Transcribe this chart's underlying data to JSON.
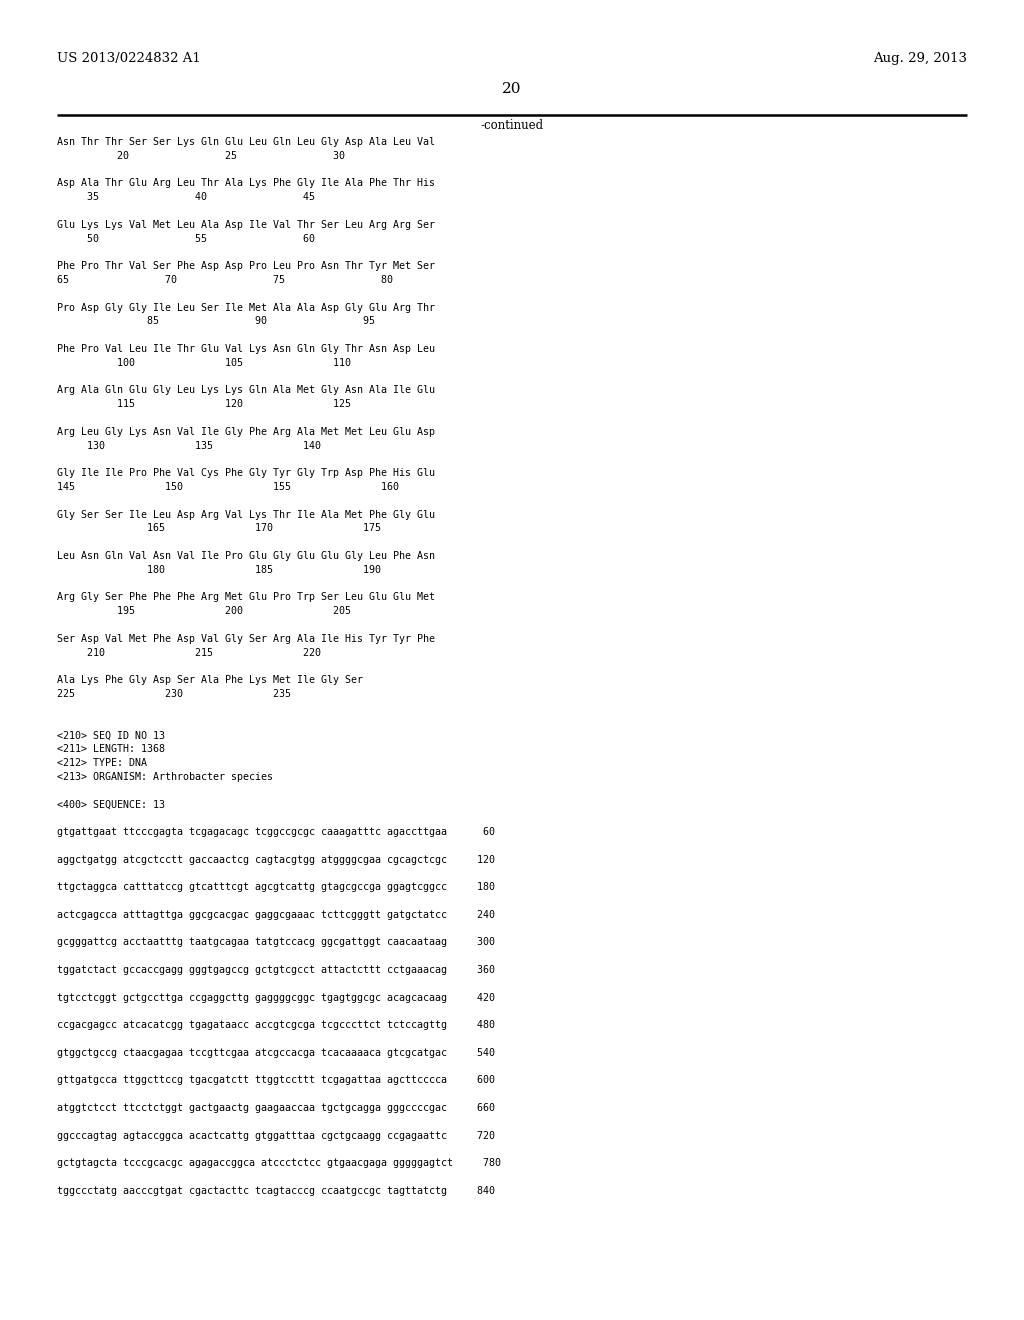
{
  "header_left": "US 2013/0224832 A1",
  "header_right": "Aug. 29, 2013",
  "page_number": "20",
  "continued_label": "-continued",
  "background_color": "#ffffff",
  "text_color": "#000000",
  "content_lines": [
    "Asn Thr Thr Ser Ser Lys Gln Glu Leu Gln Leu Gly Asp Ala Leu Val",
    "          20                25                30",
    "",
    "Asp Ala Thr Glu Arg Leu Thr Ala Lys Phe Gly Ile Ala Phe Thr His",
    "     35                40                45",
    "",
    "Glu Lys Lys Val Met Leu Ala Asp Ile Val Thr Ser Leu Arg Arg Ser",
    "     50                55                60",
    "",
    "Phe Pro Thr Val Ser Phe Asp Asp Pro Leu Pro Asn Thr Tyr Met Ser",
    "65                70                75                80",
    "",
    "Pro Asp Gly Gly Ile Leu Ser Ile Met Ala Ala Asp Gly Glu Arg Thr",
    "               85                90                95",
    "",
    "Phe Pro Val Leu Ile Thr Glu Val Lys Asn Gln Gly Thr Asn Asp Leu",
    "          100               105               110",
    "",
    "Arg Ala Gln Glu Gly Leu Lys Lys Gln Ala Met Gly Asn Ala Ile Glu",
    "          115               120               125",
    "",
    "Arg Leu Gly Lys Asn Val Ile Gly Phe Arg Ala Met Met Leu Glu Asp",
    "     130               135               140",
    "",
    "Gly Ile Ile Pro Phe Val Cys Phe Gly Tyr Gly Trp Asp Phe His Glu",
    "145               150               155               160",
    "",
    "Gly Ser Ser Ile Leu Asp Arg Val Lys Thr Ile Ala Met Phe Gly Glu",
    "               165               170               175",
    "",
    "Leu Asn Gln Val Asn Val Ile Pro Glu Gly Glu Glu Gly Leu Phe Asn",
    "               180               185               190",
    "",
    "Arg Gly Ser Phe Phe Phe Arg Met Glu Pro Trp Ser Leu Glu Glu Met",
    "          195               200               205",
    "",
    "Ser Asp Val Met Phe Asp Val Gly Ser Arg Ala Ile His Tyr Tyr Phe",
    "     210               215               220",
    "",
    "Ala Lys Phe Gly Asp Ser Ala Phe Lys Met Ile Gly Ser",
    "225               230               235",
    "",
    "",
    "<210> SEQ ID NO 13",
    "<211> LENGTH: 1368",
    "<212> TYPE: DNA",
    "<213> ORGANISM: Arthrobacter species",
    "",
    "<400> SEQUENCE: 13",
    "",
    "gtgattgaat ttcccgagta tcgagacagc tcggccgcgc caaagatttc agaccttgaa      60",
    "",
    "aggctgatgg atcgctcctt gaccaactcg cagtacgtgg atggggcgaa cgcagctcgc     120",
    "",
    "ttgctaggca catttatccg gtcatttcgt agcgtcattg gtagcgccga ggagtcggcc     180",
    "",
    "actcgagcca atttagttga ggcgcacgac gaggcgaaac tcttcgggtt gatgctatcc     240",
    "",
    "gcgggattcg acctaatttg taatgcagaa tatgtccacg ggcgattggt caacaataag     300",
    "",
    "tggatctact gccaccgagg gggtgagccg gctgtcgcct attactcttt cctgaaacag     360",
    "",
    "tgtcctcggt gctgccttga ccgaggcttg gaggggcggc tgagtggcgc acagcacaag     420",
    "",
    "ccgacgagcc atcacatcgg tgagataacc accgtcgcga tcgcccttct tctccagttg     480",
    "",
    "gtggctgccg ctaacgagaa tccgttcgaa atcgccacga tcacaaaaca gtcgcatgac     540",
    "",
    "gttgatgcca ttggcttccg tgacgatctt ttggtccttt tcgagattaa agcttcccca     600",
    "",
    "atggtctcct ttcctctggt gactgaactg gaagaaccaa tgctgcagga gggccccgac     660",
    "",
    "ggcccagtag agtaccggca acactcattg gtggatttaa cgctgcaagg ccgagaattc     720",
    "",
    "gctgtagcta tcccgcacgc agagaccggca atccctctcc gtgaacgaga gggggagtct     780",
    "",
    "tggccctatg aacccgtgat cgactacttc tcagtacccg ccaatgccgc tagttatctg     840"
  ]
}
